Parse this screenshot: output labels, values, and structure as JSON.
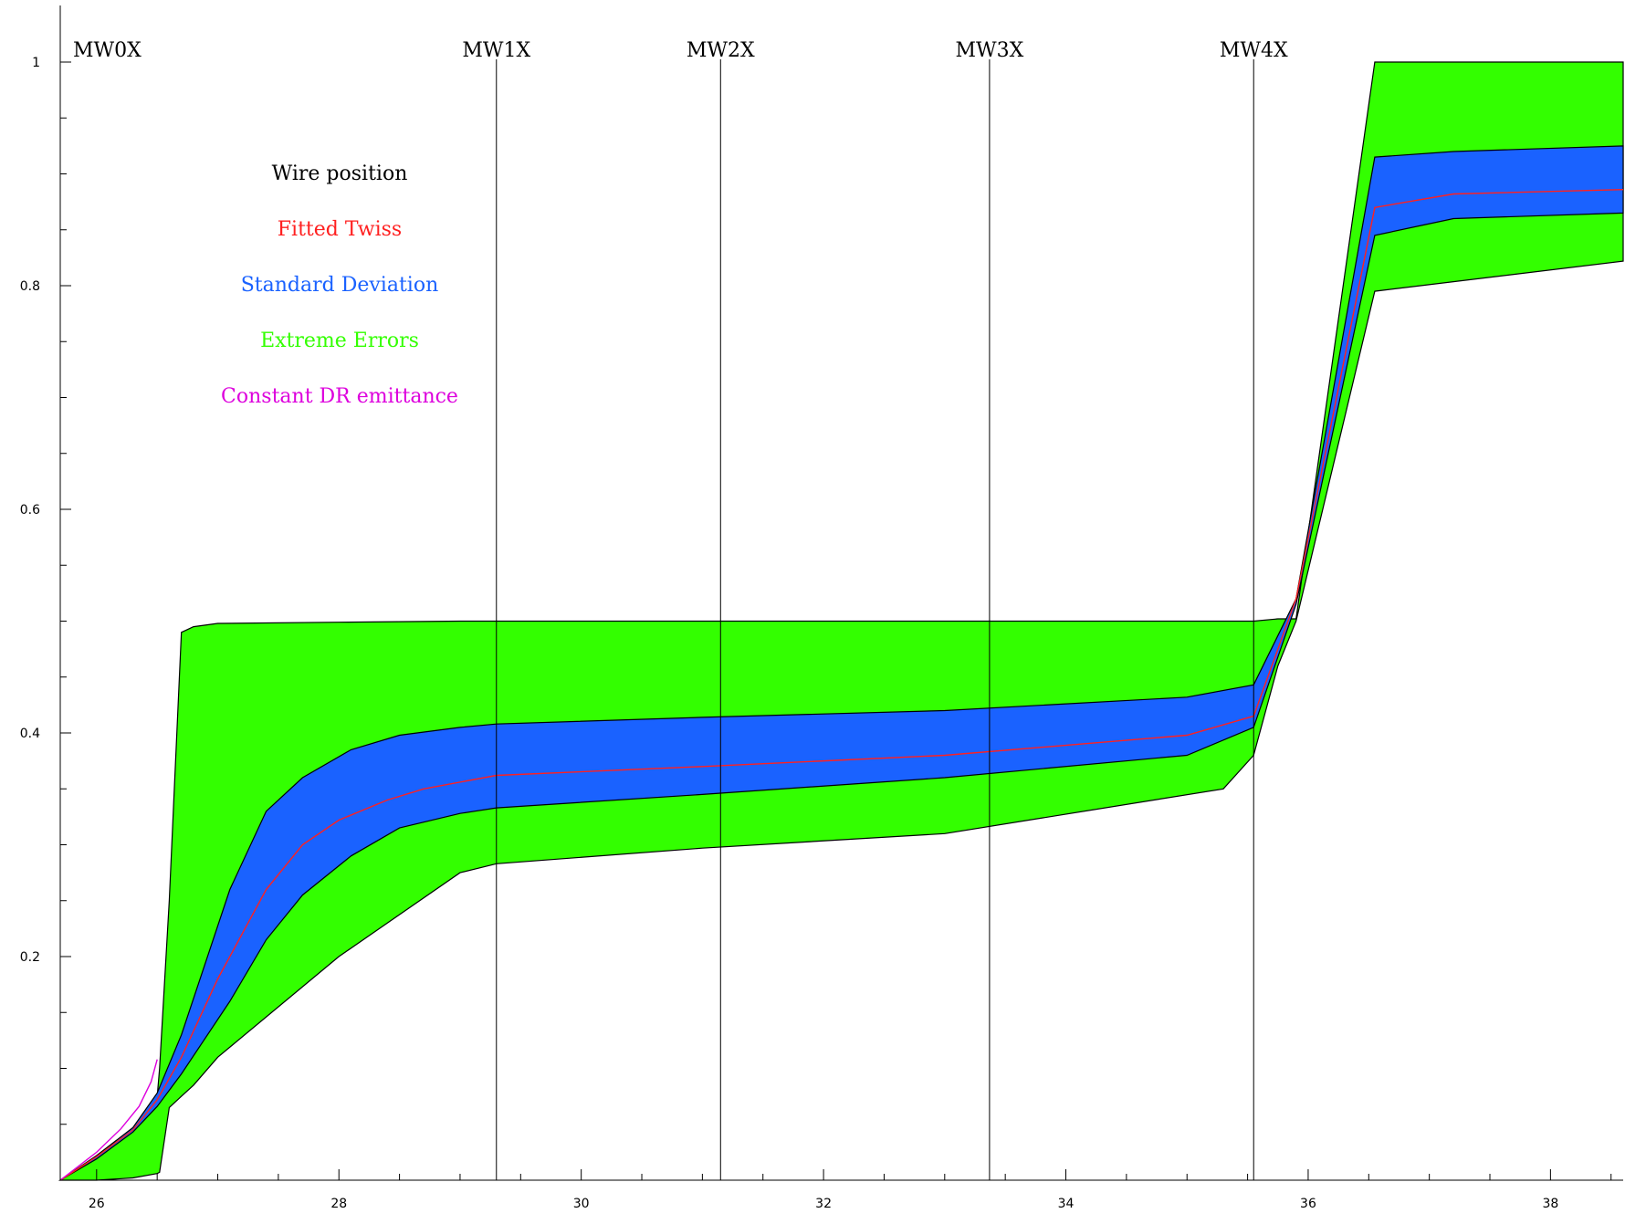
{
  "chart_data": {
    "type": "area",
    "title": "",
    "xlabel": "",
    "ylabel": "",
    "xlim": [
      25.7,
      38.6
    ],
    "ylim": [
      0,
      1.05
    ],
    "grid": false,
    "x_ticks": [
      26,
      28,
      30,
      32,
      34,
      36,
      38
    ],
    "x_tick_labels": [
      "26",
      "28",
      "30",
      "32",
      "34",
      "36",
      "38"
    ],
    "y_ticks": [
      0.2,
      0.4,
      0.6,
      0.8,
      1.0
    ],
    "y_tick_labels": [
      "0.2",
      "0.4",
      "0.6",
      "0.8",
      "1"
    ],
    "wire_positions": [
      {
        "label": "MW0X",
        "x": 25.7
      },
      {
        "label": "MW1X",
        "x": 29.3
      },
      {
        "label": "MW2X",
        "x": 31.15
      },
      {
        "label": "MW3X",
        "x": 33.37
      },
      {
        "label": "MW4X",
        "x": 35.55
      }
    ],
    "legend": {
      "placement": "upper-left",
      "entries": [
        {
          "label": "Wire position",
          "color": "#000000"
        },
        {
          "label": "Fitted Twiss",
          "color": "#ff2020"
        },
        {
          "label": "Standard Deviation",
          "color": "#1a62ff"
        },
        {
          "label": "Extreme Errors",
          "color": "#33ff00"
        },
        {
          "label": "Constant DR emittance",
          "color": "#dd00dd"
        }
      ]
    },
    "series": [
      {
        "name": "Extreme Errors",
        "kind": "band",
        "color": "#33ff00",
        "x": [
          25.7,
          26.0,
          26.3,
          26.5,
          26.52,
          26.6,
          26.7,
          26.8,
          27.0,
          28.0,
          29.0,
          29.3,
          31.0,
          33.0,
          35.3,
          35.55,
          35.75,
          35.9,
          36.55,
          38.6
        ],
        "upper": [
          0.0,
          0.02,
          0.045,
          0.075,
          0.1,
          0.25,
          0.49,
          0.495,
          0.498,
          0.499,
          0.5,
          0.5,
          0.5,
          0.5,
          0.5,
          0.5,
          0.502,
          0.502,
          1.0,
          1.0
        ],
        "lower": [
          0.0,
          0.0,
          0.002,
          0.006,
          0.007,
          0.065,
          0.075,
          0.085,
          0.11,
          0.2,
          0.275,
          0.283,
          0.297,
          0.31,
          0.35,
          0.38,
          0.46,
          0.5,
          0.795,
          0.822
        ]
      },
      {
        "name": "Standard Deviation",
        "kind": "band",
        "color": "#1a62ff",
        "x": [
          25.7,
          26.0,
          26.3,
          26.5,
          26.7,
          27.1,
          27.4,
          27.7,
          28.1,
          28.5,
          29.0,
          29.3,
          31.0,
          33.0,
          35.0,
          35.55,
          35.9,
          36.55,
          37.2,
          38.6
        ],
        "upper": [
          0.0,
          0.022,
          0.047,
          0.078,
          0.13,
          0.26,
          0.33,
          0.36,
          0.385,
          0.398,
          0.405,
          0.408,
          0.414,
          0.42,
          0.432,
          0.443,
          0.52,
          0.915,
          0.92,
          0.925
        ],
        "lower": [
          0.0,
          0.019,
          0.043,
          0.066,
          0.095,
          0.16,
          0.215,
          0.255,
          0.29,
          0.315,
          0.328,
          0.333,
          0.345,
          0.36,
          0.38,
          0.405,
          0.515,
          0.845,
          0.86,
          0.865
        ]
      },
      {
        "name": "Fitted Twiss",
        "kind": "line",
        "color": "#ff2020",
        "x": [
          25.7,
          26.0,
          26.3,
          26.5,
          26.7,
          27.0,
          27.4,
          27.7,
          28.0,
          28.4,
          28.7,
          29.3,
          31.0,
          33.0,
          35.0,
          35.55,
          35.9,
          36.55,
          37.2,
          38.6
        ],
        "y": [
          0.0,
          0.021,
          0.045,
          0.072,
          0.11,
          0.18,
          0.26,
          0.3,
          0.322,
          0.34,
          0.35,
          0.362,
          0.37,
          0.38,
          0.398,
          0.415,
          0.52,
          0.87,
          0.882,
          0.886
        ]
      },
      {
        "name": "Constant DR emittance",
        "kind": "line",
        "color": "#dd00dd",
        "x": [
          25.7,
          26.0,
          26.2,
          26.35,
          26.45,
          26.5
        ],
        "y": [
          0.0,
          0.025,
          0.046,
          0.066,
          0.088,
          0.108
        ]
      }
    ]
  }
}
